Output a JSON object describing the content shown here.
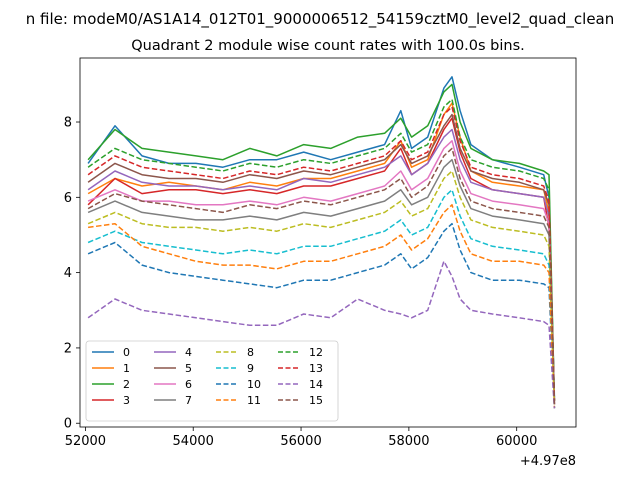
{
  "figure": {
    "suptitle": "n file: modeM0/AS1A14_012T01_9000006512_54159cztM0_level2_quad_clean",
    "title": "Quadrant 2 module wise count rates with 100.0s bins.",
    "offset_label": "+4.97e8"
  },
  "chart_data": {
    "type": "line",
    "title": "Quadrant 2 module wise count rates with 100.0s bins.",
    "xlabel": "",
    "ylabel": "",
    "xlim": [
      51900,
      61100
    ],
    "ylim": [
      -0.1,
      9.7
    ],
    "x_offset": "+4.97e8",
    "x_ticks": [
      52000,
      54000,
      56000,
      58000,
      60000
    ],
    "x_tick_labels": [
      "52000",
      "54000",
      "56000",
      "58000",
      "60000"
    ],
    "y_ticks": [
      0,
      2,
      4,
      6,
      8
    ],
    "y_tick_labels": [
      "0",
      "2",
      "4",
      "6",
      "8"
    ],
    "legend_position": "lower-left",
    "legend_columns": 4,
    "x": [
      52050,
      52550,
      53050,
      53550,
      54050,
      54550,
      55050,
      55550,
      56050,
      56550,
      57050,
      57550,
      57850,
      58050,
      58350,
      58650,
      58800,
      58950,
      59150,
      59550,
      60050,
      60500,
      60600,
      60700
    ],
    "series": [
      {
        "name": "0",
        "color": "#1f77b4",
        "dash": "solid",
        "values": [
          6.9,
          7.9,
          7.1,
          6.9,
          6.9,
          6.8,
          7.0,
          7.0,
          7.2,
          7.0,
          7.2,
          7.4,
          8.3,
          7.3,
          7.6,
          8.9,
          9.2,
          8.3,
          7.4,
          7.0,
          6.8,
          6.6,
          6.0,
          0.7
        ]
      },
      {
        "name": "1",
        "color": "#ff7f0e",
        "dash": "solid",
        "values": [
          6.1,
          6.5,
          6.3,
          6.4,
          6.3,
          6.2,
          6.4,
          6.3,
          6.5,
          6.5,
          6.7,
          6.9,
          7.5,
          6.8,
          7.0,
          8.2,
          8.5,
          7.6,
          6.7,
          6.4,
          6.3,
          6.2,
          5.6,
          0.6
        ]
      },
      {
        "name": "2",
        "color": "#2ca02c",
        "dash": "solid",
        "values": [
          7.0,
          7.8,
          7.3,
          7.2,
          7.1,
          7.0,
          7.3,
          7.1,
          7.4,
          7.3,
          7.6,
          7.7,
          8.1,
          7.6,
          7.9,
          8.8,
          9.0,
          8.0,
          7.3,
          7.0,
          6.9,
          6.7,
          6.6,
          0.6
        ]
      },
      {
        "name": "3",
        "color": "#d62728",
        "dash": "solid",
        "values": [
          5.8,
          6.5,
          6.1,
          6.2,
          6.2,
          6.1,
          6.2,
          6.1,
          6.3,
          6.3,
          6.5,
          6.7,
          7.3,
          6.6,
          6.9,
          7.8,
          8.1,
          7.2,
          6.5,
          6.2,
          6.1,
          6.0,
          5.2,
          0.5
        ]
      },
      {
        "name": "4",
        "color": "#9467bd",
        "dash": "solid",
        "values": [
          6.2,
          6.7,
          6.4,
          6.3,
          6.3,
          6.2,
          6.3,
          6.2,
          6.5,
          6.4,
          6.6,
          6.8,
          7.1,
          6.6,
          6.9,
          7.6,
          7.8,
          7.0,
          6.4,
          6.2,
          6.1,
          6.0,
          5.5,
          0.6
        ]
      },
      {
        "name": "5",
        "color": "#8c564b",
        "dash": "solid",
        "values": [
          6.4,
          6.9,
          6.6,
          6.5,
          6.5,
          6.4,
          6.6,
          6.5,
          6.7,
          6.6,
          6.8,
          7.0,
          7.4,
          6.9,
          7.1,
          7.9,
          8.2,
          7.3,
          6.7,
          6.5,
          6.4,
          6.2,
          5.8,
          0.6
        ]
      },
      {
        "name": "6",
        "color": "#e377c2",
        "dash": "solid",
        "values": [
          5.9,
          6.2,
          5.9,
          5.9,
          5.8,
          5.8,
          5.9,
          5.8,
          6.0,
          5.9,
          6.1,
          6.3,
          6.7,
          6.2,
          6.5,
          7.3,
          7.5,
          6.7,
          6.1,
          5.9,
          5.8,
          5.7,
          5.3,
          0.5
        ]
      },
      {
        "name": "7",
        "color": "#7f7f7f",
        "dash": "solid",
        "values": [
          5.6,
          5.9,
          5.6,
          5.5,
          5.4,
          5.4,
          5.5,
          5.4,
          5.6,
          5.5,
          5.7,
          5.9,
          6.2,
          5.8,
          6.0,
          6.8,
          7.0,
          6.3,
          5.7,
          5.5,
          5.4,
          5.3,
          5.0,
          0.5
        ]
      },
      {
        "name": "8",
        "color": "#bcbd22",
        "dash": "dashed",
        "values": [
          5.3,
          5.6,
          5.3,
          5.2,
          5.2,
          5.1,
          5.2,
          5.1,
          5.3,
          5.2,
          5.4,
          5.6,
          5.9,
          5.5,
          5.7,
          6.5,
          6.7,
          6.0,
          5.4,
          5.2,
          5.1,
          5.0,
          4.7,
          0.5
        ]
      },
      {
        "name": "9",
        "color": "#17becf",
        "dash": "dashed",
        "values": [
          4.8,
          5.1,
          4.8,
          4.7,
          4.6,
          4.5,
          4.6,
          4.5,
          4.7,
          4.7,
          4.9,
          5.1,
          5.4,
          5.0,
          5.2,
          6.0,
          6.2,
          5.5,
          4.9,
          4.7,
          4.6,
          4.5,
          4.2,
          0.4
        ]
      },
      {
        "name": "10",
        "color": "#1f77b4",
        "dash": "dashed",
        "values": [
          4.5,
          4.8,
          4.2,
          4.0,
          3.9,
          3.8,
          3.7,
          3.6,
          3.8,
          3.8,
          4.0,
          4.2,
          4.5,
          4.1,
          4.4,
          5.1,
          5.3,
          4.6,
          4.0,
          3.8,
          3.8,
          3.7,
          3.6,
          0.4
        ]
      },
      {
        "name": "11",
        "color": "#ff7f0e",
        "dash": "dashed",
        "values": [
          5.2,
          5.3,
          4.7,
          4.5,
          4.3,
          4.2,
          4.2,
          4.1,
          4.3,
          4.3,
          4.5,
          4.7,
          5.0,
          4.6,
          4.9,
          5.6,
          5.8,
          5.1,
          4.5,
          4.3,
          4.3,
          4.2,
          4.0,
          0.4
        ]
      },
      {
        "name": "12",
        "color": "#2ca02c",
        "dash": "dashed",
        "values": [
          6.8,
          7.3,
          7.0,
          6.9,
          6.8,
          6.7,
          6.9,
          6.8,
          7.0,
          6.9,
          7.1,
          7.3,
          7.7,
          7.2,
          7.4,
          8.4,
          8.6,
          7.6,
          7.0,
          6.8,
          6.7,
          6.5,
          6.2,
          0.6
        ]
      },
      {
        "name": "13",
        "color": "#d62728",
        "dash": "dashed",
        "values": [
          6.6,
          7.1,
          6.8,
          6.7,
          6.6,
          6.5,
          6.7,
          6.6,
          6.8,
          6.7,
          6.9,
          7.1,
          7.5,
          7.0,
          7.2,
          8.2,
          8.4,
          7.5,
          6.8,
          6.6,
          6.5,
          6.3,
          5.9,
          0.6
        ]
      },
      {
        "name": "14",
        "color": "#9467bd",
        "dash": "dashed",
        "values": [
          2.8,
          3.3,
          3.0,
          2.9,
          2.8,
          2.7,
          2.6,
          2.6,
          2.9,
          2.8,
          3.3,
          3.0,
          2.9,
          2.8,
          3.0,
          4.3,
          3.9,
          3.3,
          3.0,
          2.9,
          2.8,
          2.7,
          2.6,
          0.4
        ]
      },
      {
        "name": "15",
        "color": "#8c564b",
        "dash": "dashed",
        "values": [
          5.7,
          6.1,
          5.9,
          5.8,
          5.7,
          5.6,
          5.8,
          5.7,
          5.9,
          5.8,
          6.0,
          6.2,
          6.5,
          6.0,
          6.3,
          7.1,
          7.3,
          6.5,
          5.9,
          5.7,
          5.6,
          5.5,
          5.2,
          0.5
        ]
      }
    ]
  }
}
